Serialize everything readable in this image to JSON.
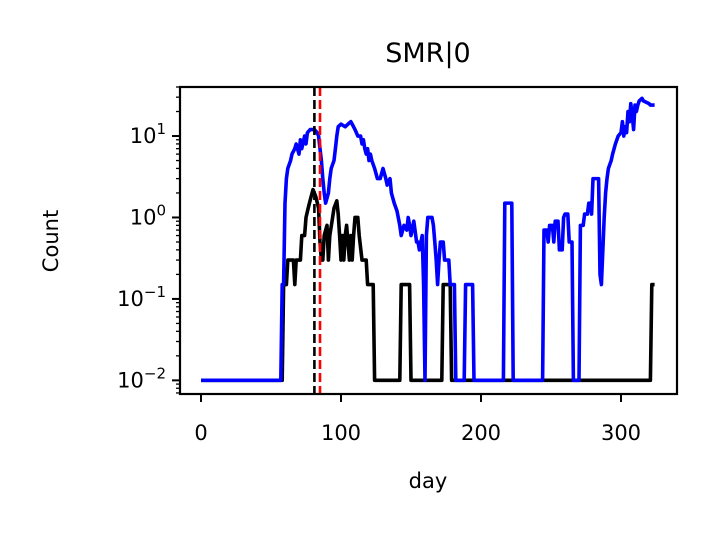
{
  "chart_data": {
    "type": "line",
    "title": "SMR|0",
    "xlabel": "day",
    "ylabel": "Count",
    "xlim": [
      -15,
      340
    ],
    "ylim": [
      0.0068,
      40
    ],
    "yscale": "log",
    "grid": false,
    "x_ticks": [
      0,
      100,
      200,
      300
    ],
    "y_ticks": [
      {
        "value": 0.01,
        "base": "10",
        "exp": "−2"
      },
      {
        "value": 0.1,
        "base": "10",
        "exp": "−1"
      },
      {
        "value": 1,
        "base": "10",
        "exp": "0"
      },
      {
        "value": 10,
        "base": "10",
        "exp": "1"
      }
    ],
    "vlines": [
      {
        "x": 81,
        "color": "#000000",
        "style": "dashed"
      },
      {
        "x": 85,
        "color": "#ff0000",
        "style": "dashed"
      }
    ],
    "series": [
      {
        "color": "#000000",
        "points": [
          [
            0,
            0.01
          ],
          [
            58,
            0.01
          ],
          [
            59,
            0.15
          ],
          [
            61,
            0.15
          ],
          [
            62,
            0.3
          ],
          [
            66,
            0.3
          ],
          [
            67,
            0.15
          ],
          [
            68,
            0.3
          ],
          [
            71,
            0.3
          ],
          [
            72,
            0.6
          ],
          [
            74,
            0.6
          ],
          [
            75,
            1.0
          ],
          [
            77,
            1.4
          ],
          [
            79,
            1.9
          ],
          [
            80,
            2.2
          ],
          [
            82,
            1.8
          ],
          [
            84,
            1.3
          ],
          [
            85,
            0.5
          ],
          [
            86,
            0.3
          ],
          [
            87,
            0.3
          ],
          [
            88,
            0.6
          ],
          [
            90,
            0.8
          ],
          [
            91,
            0.3
          ],
          [
            92,
            0.6
          ],
          [
            94,
            1.0
          ],
          [
            95,
            1.3
          ],
          [
            97,
            1.6
          ],
          [
            98,
            1.1
          ],
          [
            99,
            0.6
          ],
          [
            100,
            0.3
          ],
          [
            101,
            0.6
          ],
          [
            102,
            0.3
          ],
          [
            103,
            0.6
          ],
          [
            104,
            0.8
          ],
          [
            106,
            0.3
          ],
          [
            107,
            0.6
          ],
          [
            108,
            0.3
          ],
          [
            109,
            0.6
          ],
          [
            110,
            1.0
          ],
          [
            112,
            1.0
          ],
          [
            113,
            0.6
          ],
          [
            115,
            0.3
          ],
          [
            118,
            0.3
          ],
          [
            119,
            0.15
          ],
          [
            123,
            0.15
          ],
          [
            124,
            0.01
          ],
          [
            142,
            0.01
          ],
          [
            143,
            0.15
          ],
          [
            149,
            0.15
          ],
          [
            150,
            0.01
          ],
          [
            172,
            0.01
          ],
          [
            173,
            0.15
          ],
          [
            178,
            0.15
          ],
          [
            179,
            0.01
          ],
          [
            321,
            0.01
          ],
          [
            322,
            0.15
          ],
          [
            324,
            0.15
          ]
        ]
      },
      {
        "color": "#0000ff",
        "points": [
          [
            0,
            0.01
          ],
          [
            57,
            0.01
          ],
          [
            58,
            0.15
          ],
          [
            59,
            0.15
          ],
          [
            60,
            1.5
          ],
          [
            61,
            3.0
          ],
          [
            62,
            4.0
          ],
          [
            64,
            5.0
          ],
          [
            65,
            6.0
          ],
          [
            67,
            7.0
          ],
          [
            68,
            8.0
          ],
          [
            70,
            6.0
          ],
          [
            71,
            9.0
          ],
          [
            72,
            7.0
          ],
          [
            74,
            10.0
          ],
          [
            75,
            8.0
          ],
          [
            76,
            11.0
          ],
          [
            78,
            12.0
          ],
          [
            81,
            12.0
          ],
          [
            83,
            11.0
          ],
          [
            84,
            10.0
          ],
          [
            85,
            7.0
          ],
          [
            86,
            5.0
          ],
          [
            87,
            3.0
          ],
          [
            88,
            2.0
          ],
          [
            89,
            1.5
          ],
          [
            91,
            2.0
          ],
          [
            92,
            3.0
          ],
          [
            93,
            4.0
          ],
          [
            95,
            5.0
          ],
          [
            96,
            7.0
          ],
          [
            97,
            10.0
          ],
          [
            98,
            13.0
          ],
          [
            100,
            14.0
          ],
          [
            103,
            13.0
          ],
          [
            105,
            14.0
          ],
          [
            107,
            15.0
          ],
          [
            108,
            14.0
          ],
          [
            110,
            12.0
          ],
          [
            111,
            11.0
          ],
          [
            112,
            10.0
          ],
          [
            114,
            10.0
          ],
          [
            115,
            8.0
          ],
          [
            116,
            9.0
          ],
          [
            117,
            7.0
          ],
          [
            118,
            6.0
          ],
          [
            119,
            7.0
          ],
          [
            120,
            5.0
          ],
          [
            121,
            6.0
          ],
          [
            122,
            5.0
          ],
          [
            124,
            4.0
          ],
          [
            126,
            3.0
          ],
          [
            128,
            3.0
          ],
          [
            130,
            4.0
          ],
          [
            132,
            3.0
          ],
          [
            133,
            2.5
          ],
          [
            135,
            3.0
          ],
          [
            136,
            2.0
          ],
          [
            138,
            1.5
          ],
          [
            140,
            1.2
          ],
          [
            142,
            0.8
          ],
          [
            143,
            0.6
          ],
          [
            145,
            0.8
          ],
          [
            147,
            0.7
          ],
          [
            148,
            1.0
          ],
          [
            149,
            0.8
          ],
          [
            150,
            0.6
          ],
          [
            152,
            0.9
          ],
          [
            154,
            0.5
          ],
          [
            155,
            0.5
          ],
          [
            156,
            0.4
          ],
          [
            158,
            0.6
          ],
          [
            159,
            0.15
          ],
          [
            160,
            0.01
          ],
          [
            161,
            0.6
          ],
          [
            162,
            1.0
          ],
          [
            165,
            1.0
          ],
          [
            166,
            0.8
          ],
          [
            167,
            0.5
          ],
          [
            168,
            0.3
          ],
          [
            169,
            0.15
          ],
          [
            170,
            0.3
          ],
          [
            171,
            0.5
          ],
          [
            173,
            0.5
          ],
          [
            174,
            0.3
          ],
          [
            177,
            0.3
          ],
          [
            178,
            0.15
          ],
          [
            181,
            0.15
          ],
          [
            182,
            0.01
          ],
          [
            188,
            0.01
          ],
          [
            189,
            0.15
          ],
          [
            194,
            0.15
          ],
          [
            195,
            0.01
          ],
          [
            216,
            0.01
          ],
          [
            217,
            1.5
          ],
          [
            222,
            1.5
          ],
          [
            223,
            0.01
          ],
          [
            244,
            0.01
          ],
          [
            245,
            0.7
          ],
          [
            247,
            0.7
          ],
          [
            248,
            0.5
          ],
          [
            249,
            0.8
          ],
          [
            251,
            0.8
          ],
          [
            252,
            0.5
          ],
          [
            253,
            0.9
          ],
          [
            255,
            0.9
          ],
          [
            256,
            0.4
          ],
          [
            258,
            0.4
          ],
          [
            259,
            1.0
          ],
          [
            260,
            1.1
          ],
          [
            262,
            1.1
          ],
          [
            263,
            0.5
          ],
          [
            265,
            0.5
          ],
          [
            266,
            0.01
          ],
          [
            270,
            0.01
          ],
          [
            271,
            0.8
          ],
          [
            273,
            0.8
          ],
          [
            274,
            1.1
          ],
          [
            276,
            1.1
          ],
          [
            277,
            1.5
          ],
          [
            278,
            1.5
          ],
          [
            279,
            1.1
          ],
          [
            280,
            3.0
          ],
          [
            284,
            3.0
          ],
          [
            285,
            0.2
          ],
          [
            286,
            0.15
          ],
          [
            288,
            1.0
          ],
          [
            289,
            2.0
          ],
          [
            290,
            3.0
          ],
          [
            291,
            4.0
          ],
          [
            293,
            5.0
          ],
          [
            294,
            6.0
          ],
          [
            296,
            8.0
          ],
          [
            298,
            10.0
          ],
          [
            300,
            11.0
          ],
          [
            301,
            15.0
          ],
          [
            302,
            10.0
          ],
          [
            303,
            13.0
          ],
          [
            304,
            11.0
          ],
          [
            305,
            20.0
          ],
          [
            306,
            15.0
          ],
          [
            307,
            25.0
          ],
          [
            308,
            18.0
          ],
          [
            309,
            12.0
          ],
          [
            310,
            24.0
          ],
          [
            311,
            20.0
          ],
          [
            312,
            24.0
          ],
          [
            313,
            27.0
          ],
          [
            315,
            29.0
          ],
          [
            316,
            27.0
          ],
          [
            318,
            26.0
          ],
          [
            320,
            25.0
          ],
          [
            321,
            24.0
          ],
          [
            324,
            24.0
          ]
        ]
      }
    ]
  }
}
